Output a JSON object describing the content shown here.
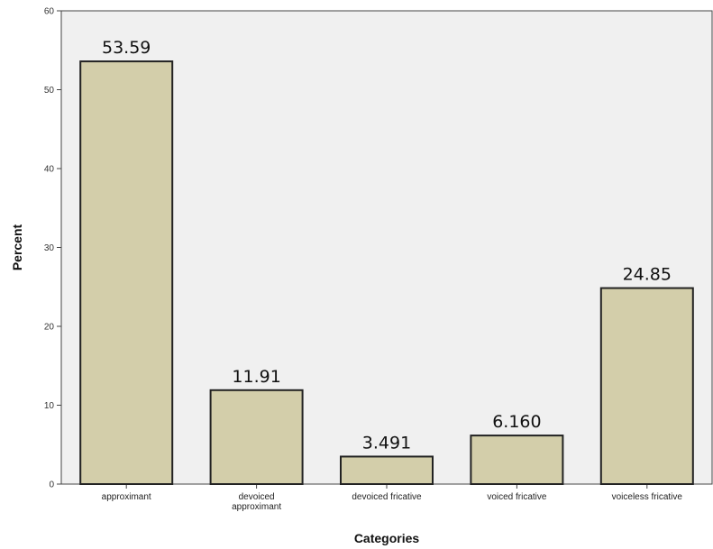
{
  "chart_data": {
    "type": "bar",
    "title": "",
    "xlabel": "Categories",
    "ylabel": "Percent",
    "ylim": [
      0,
      60
    ],
    "yticks": [
      0,
      10,
      20,
      30,
      40,
      50,
      60
    ],
    "grid": false,
    "categories": [
      [
        "approximant"
      ],
      [
        "devoiced",
        "approximant"
      ],
      [
        "devoiced fricative"
      ],
      [
        "voiced fricative"
      ],
      [
        "voiceless fricative"
      ]
    ],
    "values": [
      53.59,
      11.91,
      3.491,
      6.16,
      24.85
    ],
    "data_labels": [
      "53.59",
      "11.91",
      "3.491",
      "6.160",
      "24.85"
    ],
    "colors": {
      "plot_background": "#f0f0f0",
      "bar_fill": "#d3ceaa",
      "bar_stroke": "#222222"
    }
  }
}
